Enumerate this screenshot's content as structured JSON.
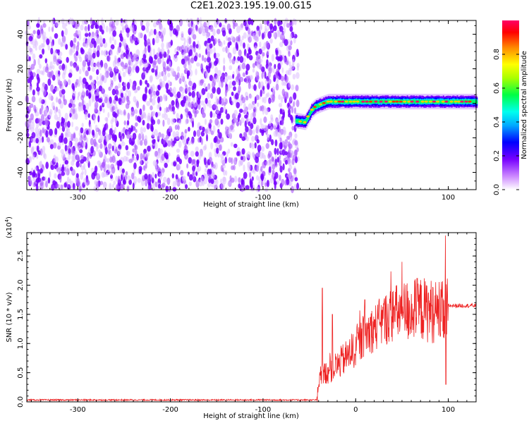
{
  "title": "C2E1.2023.195.19.00.G15",
  "chart_data": [
    {
      "type": "heatmap",
      "xlabel": "Height of straight line (km)",
      "ylabel": "Frequency (Hz)",
      "xlim": [
        -355,
        130
      ],
      "ylim": [
        -50,
        48
      ],
      "xticks": [
        -300,
        -200,
        -100,
        0,
        100
      ],
      "yticks": [
        -40,
        -20,
        0,
        20,
        40
      ],
      "colorbar": {
        "label": "Normalized spectral amplitude",
        "range": [
          0.0,
          1.0
        ],
        "ticks": [
          "0.0",
          "0.2",
          "0.4",
          "0.6",
          "0.8"
        ],
        "colors": [
          "#ffffff",
          "#cc88ff",
          "#7700ff",
          "#0000ff",
          "#00aaff",
          "#00ffee",
          "#00ff44",
          "#aaff00",
          "#ffff00",
          "#ff8800",
          "#ff0000",
          "#ff0066"
        ]
      },
      "noise_region": {
        "x": [
          -355,
          -62
        ],
        "amplitude_range": [
          0.0,
          0.3
        ]
      },
      "signal_track": [
        {
          "x": -65,
          "freq": -10
        },
        {
          "x": -55,
          "freq": -11
        },
        {
          "x": -48,
          "freq": -4
        },
        {
          "x": -44,
          "freq": -2
        },
        {
          "x": -40,
          "freq": -1
        },
        {
          "x": -30,
          "freq": 1
        },
        {
          "x": -20,
          "freq": 1
        },
        {
          "x": 0,
          "freq": 1
        },
        {
          "x": 50,
          "freq": 1
        },
        {
          "x": 100,
          "freq": 1
        },
        {
          "x": 130,
          "freq": 1
        }
      ]
    },
    {
      "type": "line",
      "xlabel": "Height of straight line (km)",
      "ylabel": "SNR (10 * v/v)",
      "scale_label": "(x10",
      "scale_exp": "4",
      "scale_close": ")",
      "xlim": [
        -355,
        130
      ],
      "ylim": [
        0,
        2.9
      ],
      "xticks": [
        -300,
        -200,
        -100,
        0,
        100
      ],
      "yticks": [
        "0.0",
        "0.5",
        "1.0",
        "1.5",
        "2.0",
        "2.5"
      ],
      "line_color": "#ee2222",
      "series": [
        {
          "x": [
            -355,
            -300,
            -200,
            -100,
            -42,
            -38,
            -30,
            -20,
            -10,
            0,
            10,
            20,
            30,
            40,
            50,
            60,
            70,
            80,
            90,
            95,
            100,
            110,
            120,
            130
          ],
          "values": [
            0.0,
            0.0,
            0.0,
            0.0,
            0.0,
            0.45,
            0.55,
            0.65,
            0.8,
            0.95,
            1.2,
            1.3,
            1.45,
            1.55,
            1.6,
            1.62,
            1.65,
            1.62,
            1.6,
            1.55,
            1.65,
            1.65,
            1.65,
            1.65
          ],
          "spikes": [
            {
              "x": -36,
              "value": 1.95
            },
            {
              "x": -25,
              "value": 1.5
            },
            {
              "x": 10,
              "value": 1.75
            },
            {
              "x": 50,
              "value": 2.4
            },
            {
              "x": 97,
              "value": 2.85
            },
            {
              "x": 97.5,
              "value": 0.3
            }
          ]
        }
      ]
    }
  ]
}
